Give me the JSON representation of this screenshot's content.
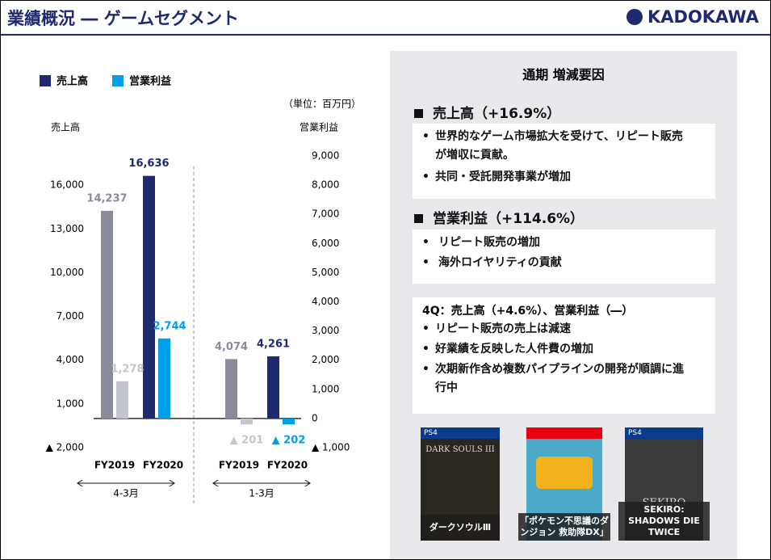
{
  "header": {
    "title": "業績概況 ― ゲームセグメント",
    "logo": "KADOKAWA"
  },
  "chart_data": {
    "type": "bar",
    "unit_note": "（単位：百万円）",
    "y_label": "売上高",
    "y2_label": "営業利益",
    "categories": [
      "FY2019",
      "FY2020",
      "FY2019",
      "FY2020"
    ],
    "groups": [
      "4-3月",
      "1-3月"
    ],
    "series": [
      {
        "name": "売上高",
        "color": "#1f2a6e",
        "point_colors": [
          "#8a8c9c",
          "#1f2a6e",
          "#8a8c9c",
          "#1f2a6e"
        ],
        "values": [
          14237,
          16636,
          4074,
          4261
        ],
        "value_labels": [
          "14,237",
          "16,636",
          "4,074",
          "4,261"
        ]
      },
      {
        "name": "営業利益",
        "color": "#00a0e9",
        "axis": "y2",
        "point_colors": [
          "#c4c5cd",
          "#00a0e9",
          "#c4c5cd",
          "#00a0e9"
        ],
        "values": [
          1278,
          2744,
          -201,
          -202
        ],
        "value_labels": [
          "1,278",
          "2,744",
          "▲ 201",
          "▲ 202"
        ]
      }
    ],
    "ylim": [
      -2000,
      18000
    ],
    "yticks": [
      {
        "value": -2000,
        "label": "▲ 2,000"
      },
      {
        "value": 1000,
        "label": "1,000"
      },
      {
        "value": 4000,
        "label": "4,000"
      },
      {
        "value": 7000,
        "label": "7,000"
      },
      {
        "value": 10000,
        "label": "10,000"
      },
      {
        "value": 13000,
        "label": "13,000"
      },
      {
        "value": 16000,
        "label": "16,000"
      }
    ],
    "y2lim": [
      -1000,
      9000
    ],
    "y2ticks": [
      {
        "value": -1000,
        "label": "▲ 1,000"
      },
      0,
      {
        "value": 1000,
        "label": "1,000"
      },
      {
        "value": 2000,
        "label": "2,000"
      },
      {
        "value": 3000,
        "label": "3,000"
      },
      {
        "value": 4000,
        "label": "4,000"
      },
      {
        "value": 5000,
        "label": "5,000"
      },
      {
        "value": 6000,
        "label": "6,000"
      },
      {
        "value": 7000,
        "label": "7,000"
      },
      {
        "value": 8000,
        "label": "8,000"
      },
      {
        "value": 9000,
        "label": "9,000"
      }
    ]
  },
  "summary": {
    "title": "通期 増減要因",
    "sections": [
      {
        "heading": "売上高（+16.9%）",
        "bullets": [
          "世界的なゲーム市場拡大を受けて、リピート販売が増収に貢献。",
          "共同・受託開発事業が増加"
        ]
      },
      {
        "heading": "営業利益（+114.6%）",
        "bullets": [
          "リピート販売の増加",
          "海外ロイヤリティの貢献"
        ]
      }
    ],
    "quarter": {
      "heading": "4Q：売上高（+4.6%）、営業利益（―）",
      "bullets": [
        "リピート販売の売上は減速",
        "好業績を反映した人件費の増加",
        "次期新作含め複数パイプラインの開発が順調に進行中"
      ]
    }
  },
  "games": [
    {
      "platform": "PS4",
      "cover": "DARK SOULS III",
      "caption": "ダークソウルⅢ"
    },
    {
      "caption": "「ポケモン不思議のダンジョン 救助隊DX」"
    },
    {
      "platform": "PS4",
      "cover": "SEKIRO",
      "caption": "SEKIRO: SHADOWS DIE TWICE"
    }
  ]
}
